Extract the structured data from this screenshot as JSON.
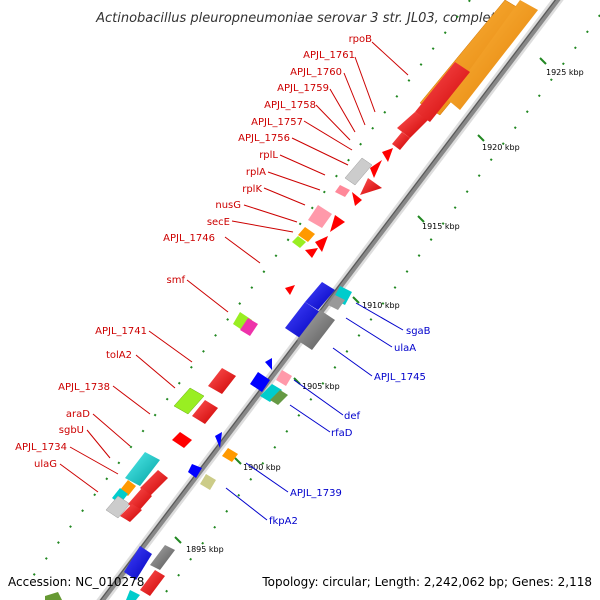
{
  "title": "Actinobacillus pleuropneumoniae serovar 3 str. JL03, complet...",
  "footer": {
    "accession": "Accession: NC_010278",
    "summary": "Topology: circular; Length: 2,242,062 bp; Genes: 2,118"
  },
  "ticks": [
    "1925 kbp",
    "1920 kbp",
    "1915 kbp",
    "1910 kbp",
    "1905 kbp",
    "1900 kbp",
    "1895 kbp"
  ],
  "labels_left": [
    "rpoB",
    "APJL_1761",
    "APJL_1760",
    "APJL_1759",
    "APJL_1758",
    "APJL_1757",
    "APJL_1756",
    "rplL",
    "rplA",
    "rplK",
    "nusG",
    "secE",
    "APJL_1746",
    "smf",
    "APJL_1741",
    "tolA2",
    "APJL_1738",
    "araD",
    "sgbU",
    "APJL_1734",
    "ulaG"
  ],
  "labels_right": [
    "sgaB",
    "ulaA",
    "APJL_1745",
    "def",
    "rfaD",
    "APJL_1739",
    "fkpA2"
  ],
  "colors": {
    "red_gene": "#ff0000",
    "orange_gene": "#ff9900",
    "blue_gene": "#0000ff",
    "gray_gene": "#808080",
    "cyan_gene": "#00cccc",
    "green_gene": "#99dd22",
    "pink_gene": "#ff99aa",
    "left_label": "#cc0000",
    "right_label": "#0000cc"
  }
}
